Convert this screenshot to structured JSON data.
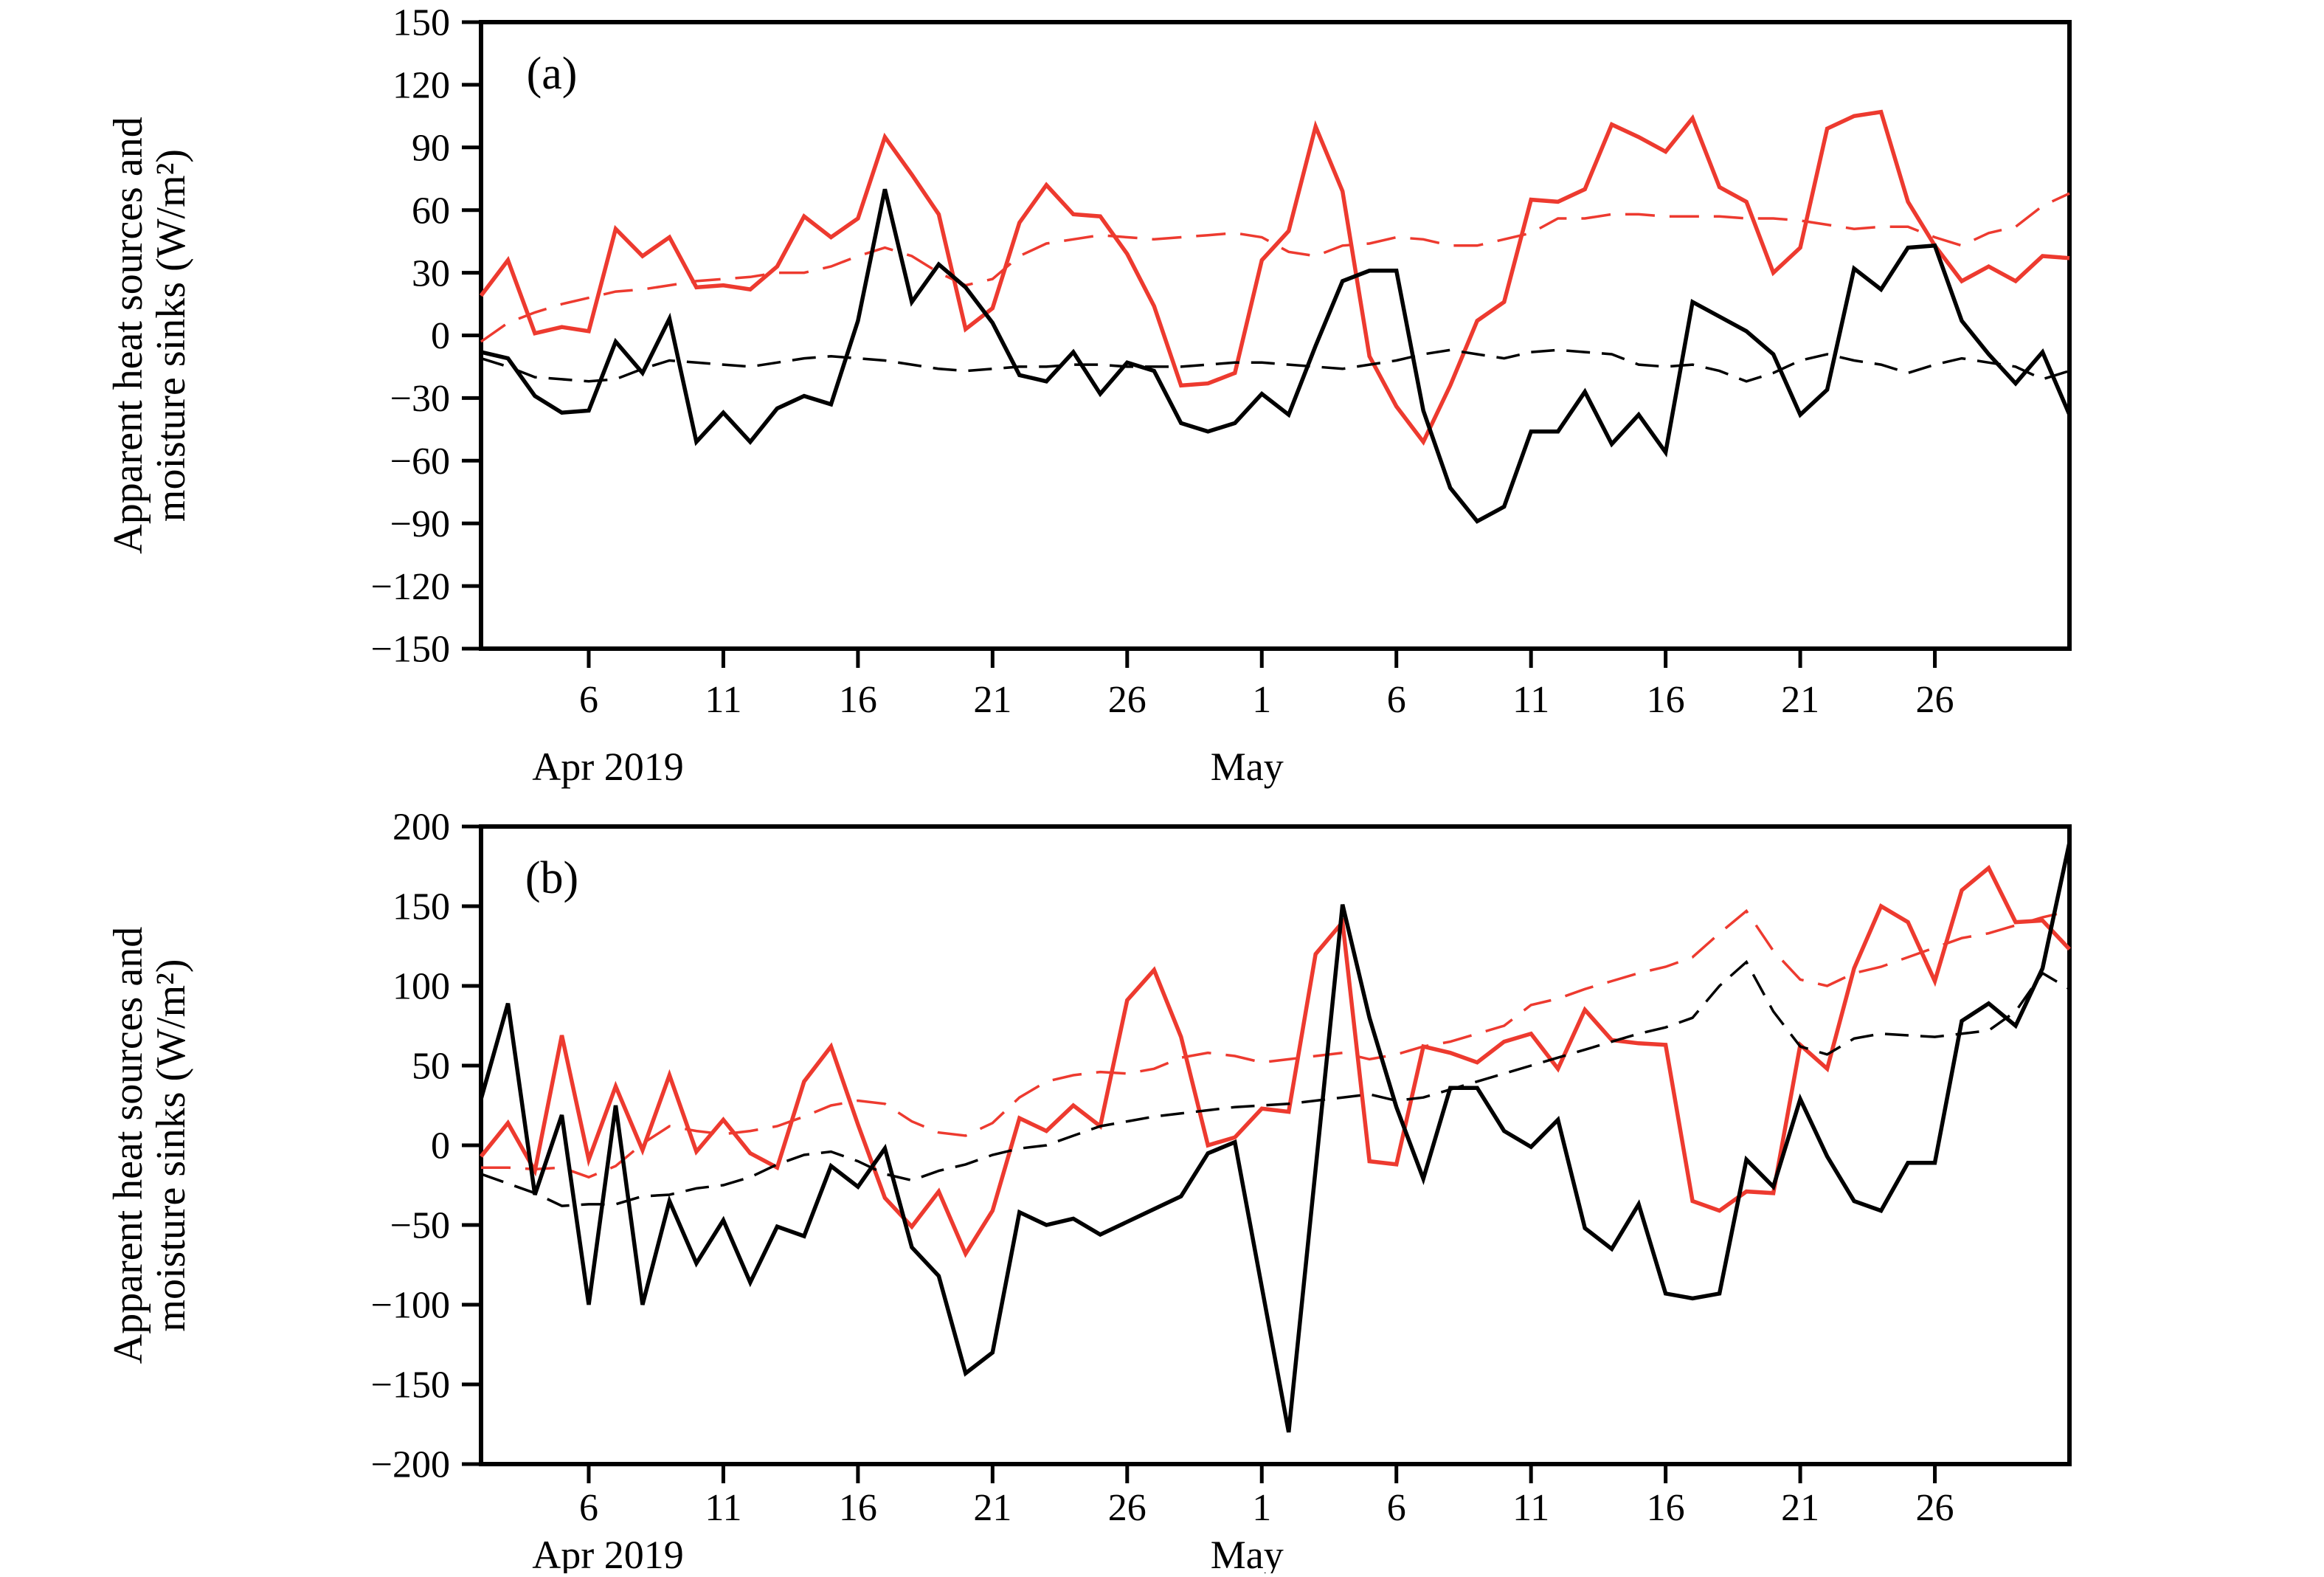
{
  "figure": {
    "ylabel_line1": "Apparent heat sources and",
    "ylabel_line2": "moisture sinks (W/m²)",
    "month_label_april": "Apr 2019",
    "month_label_may": "May",
    "colors": {
      "red": "#ed3a2f",
      "black": "#000000"
    }
  },
  "chart_data": [
    {
      "type": "line",
      "panel_label": "(a)",
      "ylabel_lines": [
        "Apparent heat sources and",
        "moisture sinks (W/m²)"
      ],
      "ylim": [
        -150,
        150
      ],
      "yticks": [
        150,
        120,
        90,
        60,
        30,
        0,
        -30,
        -60,
        -90,
        -120,
        -150
      ],
      "x_start_date": "Apr 2 2019",
      "x_end_date": "May 31 2019",
      "xticks": [
        {
          "i": 4,
          "label": "6"
        },
        {
          "i": 9,
          "label": "11"
        },
        {
          "i": 14,
          "label": "16"
        },
        {
          "i": 19,
          "label": "21"
        },
        {
          "i": 24,
          "label": "26"
        },
        {
          "i": 29,
          "label": "1"
        },
        {
          "i": 34,
          "label": "6"
        },
        {
          "i": 39,
          "label": "11"
        },
        {
          "i": 44,
          "label": "16"
        },
        {
          "i": 49,
          "label": "21"
        },
        {
          "i": 54,
          "label": "26"
        }
      ],
      "months": [
        {
          "i": 4,
          "label": "Apr 2019"
        },
        {
          "i": 29,
          "label": "May"
        }
      ],
      "grid": false,
      "legend": "none",
      "series": [
        {
          "name": "red-solid",
          "color": "#ed3a2f",
          "style": "solid",
          "values": [
            19,
            36,
            1,
            4,
            2,
            51,
            38,
            47,
            23,
            24,
            22,
            33,
            57,
            47,
            56,
            95,
            77,
            58,
            3,
            13,
            54,
            72,
            58,
            57,
            39,
            14,
            -24,
            -23,
            -18,
            36,
            50,
            100,
            69,
            -10,
            -34,
            -51,
            -24,
            7,
            16,
            65,
            64,
            70,
            101,
            95,
            88,
            104,
            71,
            64,
            30,
            42,
            99,
            105,
            107,
            64,
            43,
            26,
            33,
            26,
            38,
            37
          ]
        },
        {
          "name": "red-dashed",
          "color": "#ed3a2f",
          "style": "dashed",
          "values": [
            -3,
            6,
            11,
            15,
            18,
            21,
            22,
            24,
            26,
            27,
            28,
            30,
            30,
            33,
            38,
            42,
            38,
            30,
            24,
            27,
            38,
            44,
            46,
            48,
            47,
            46,
            47,
            48,
            49,
            47,
            40,
            38,
            43,
            44,
            47,
            46,
            43,
            43,
            46,
            49,
            56,
            56,
            58,
            58,
            57,
            57,
            57,
            56,
            56,
            55,
            53,
            51,
            52,
            52,
            47,
            43,
            49,
            52,
            62,
            68
          ]
        },
        {
          "name": "black-solid",
          "color": "#000000",
          "style": "solid",
          "values": [
            -8,
            -11,
            -29,
            -37,
            -36,
            -3,
            -18,
            8,
            -51,
            -37,
            -51,
            -35,
            -29,
            -33,
            7,
            70,
            16,
            34,
            23,
            6,
            -19,
            -22,
            -8,
            -28,
            -13,
            -17,
            -42,
            -46,
            -42,
            -28,
            -38,
            -5,
            26,
            31,
            31,
            -36,
            -73,
            -89,
            -82,
            -46,
            -46,
            -27,
            -52,
            -38,
            -56,
            16,
            9,
            2,
            -9,
            -38,
            -26,
            32,
            22,
            42,
            43,
            7,
            -9,
            -23,
            -8,
            -38
          ]
        },
        {
          "name": "black-dashed",
          "color": "#000000",
          "style": "dashed",
          "values": [
            -11,
            -15,
            -20,
            -21,
            -22,
            -21,
            -16,
            -12,
            -13,
            -14,
            -15,
            -13,
            -11,
            -10,
            -11,
            -12,
            -14,
            -16,
            -17,
            -16,
            -15,
            -15,
            -14,
            -14,
            -15,
            -15,
            -15,
            -14,
            -13,
            -13,
            -14,
            -15,
            -16,
            -14,
            -12,
            -9,
            -7,
            -9,
            -11,
            -8,
            -7,
            -8,
            -9,
            -14,
            -15,
            -14,
            -17,
            -22,
            -18,
            -12,
            -9,
            -12,
            -14,
            -18,
            -14,
            -11,
            -13,
            -15,
            -21,
            -17
          ]
        }
      ]
    },
    {
      "type": "line",
      "panel_label": "(b)",
      "ylabel_lines": [
        "Apparent heat sources and",
        "moisture sinks (W/m²)"
      ],
      "ylim": [
        -200,
        200
      ],
      "yticks": [
        200,
        150,
        100,
        50,
        0,
        -50,
        -100,
        -150,
        -200
      ],
      "x_start_date": "Apr 2 2019",
      "x_end_date": "May 31 2019",
      "xticks": [
        {
          "i": 4,
          "label": "6"
        },
        {
          "i": 9,
          "label": "11"
        },
        {
          "i": 14,
          "label": "16"
        },
        {
          "i": 19,
          "label": "21"
        },
        {
          "i": 24,
          "label": "26"
        },
        {
          "i": 29,
          "label": "1"
        },
        {
          "i": 34,
          "label": "6"
        },
        {
          "i": 39,
          "label": "11"
        },
        {
          "i": 44,
          "label": "16"
        },
        {
          "i": 49,
          "label": "21"
        },
        {
          "i": 54,
          "label": "26"
        }
      ],
      "months": [
        {
          "i": 4,
          "label": "Apr 2019"
        },
        {
          "i": 29,
          "label": "May"
        }
      ],
      "grid": false,
      "legend": "none",
      "series": [
        {
          "name": "red-solid",
          "color": "#ed3a2f",
          "style": "solid",
          "values": [
            -7,
            14,
            -16,
            69,
            -9,
            37,
            -3,
            44,
            -4,
            16,
            -5,
            -14,
            40,
            62,
            13,
            -33,
            -51,
            -29,
            -68,
            -41,
            17,
            9,
            25,
            12,
            91,
            110,
            68,
            0,
            5,
            23,
            21,
            120,
            140,
            -10,
            -12,
            62,
            58,
            52,
            65,
            70,
            48,
            85,
            66,
            64,
            63,
            -35,
            -41,
            -29,
            -30,
            63,
            48,
            111,
            150,
            140,
            103,
            160,
            174,
            140,
            141,
            123
          ]
        },
        {
          "name": "red-dashed",
          "color": "#ed3a2f",
          "style": "dashed",
          "values": [
            -14,
            -14,
            -15,
            -14,
            -20,
            -13,
            1,
            12,
            9,
            7,
            9,
            12,
            18,
            25,
            28,
            26,
            15,
            8,
            6,
            14,
            30,
            40,
            44,
            46,
            45,
            48,
            55,
            58,
            56,
            52,
            54,
            56,
            58,
            54,
            57,
            62,
            65,
            70,
            75,
            88,
            92,
            98,
            103,
            108,
            112,
            118,
            133,
            147,
            122,
            104,
            100,
            108,
            112,
            118,
            124,
            130,
            133,
            138,
            143,
            147
          ]
        },
        {
          "name": "black-solid",
          "color": "#000000",
          "style": "solid",
          "values": [
            29,
            89,
            -31,
            19,
            -100,
            25,
            -100,
            -35,
            -74,
            -47,
            -86,
            -51,
            -57,
            -13,
            -26,
            -2,
            -64,
            -82,
            -143,
            -130,
            -42,
            -50,
            -46,
            -56,
            -48,
            -40,
            -32,
            -5,
            2,
            -89,
            -180,
            -15,
            151,
            80,
            24,
            -21,
            36,
            36,
            9,
            -1,
            16,
            -52,
            -65,
            -37,
            -93,
            -96,
            -93,
            -9,
            -26,
            29,
            -7,
            -35,
            -41,
            -11,
            -11,
            78,
            89,
            75,
            111,
            190
          ]
        },
        {
          "name": "black-dashed",
          "color": "#000000",
          "style": "dashed",
          "values": [
            -18,
            -24,
            -30,
            -38,
            -37,
            -37,
            -32,
            -31,
            -27,
            -25,
            -20,
            -12,
            -6,
            -4,
            -10,
            -18,
            -22,
            -16,
            -12,
            -6,
            -2,
            0,
            6,
            12,
            15,
            18,
            20,
            22,
            24,
            25,
            26,
            28,
            30,
            32,
            28,
            30,
            35,
            40,
            45,
            50,
            55,
            60,
            65,
            70,
            74,
            80,
            100,
            115,
            84,
            62,
            57,
            67,
            70,
            69,
            68,
            70,
            72,
            84,
            108,
            98
          ]
        }
      ]
    }
  ]
}
